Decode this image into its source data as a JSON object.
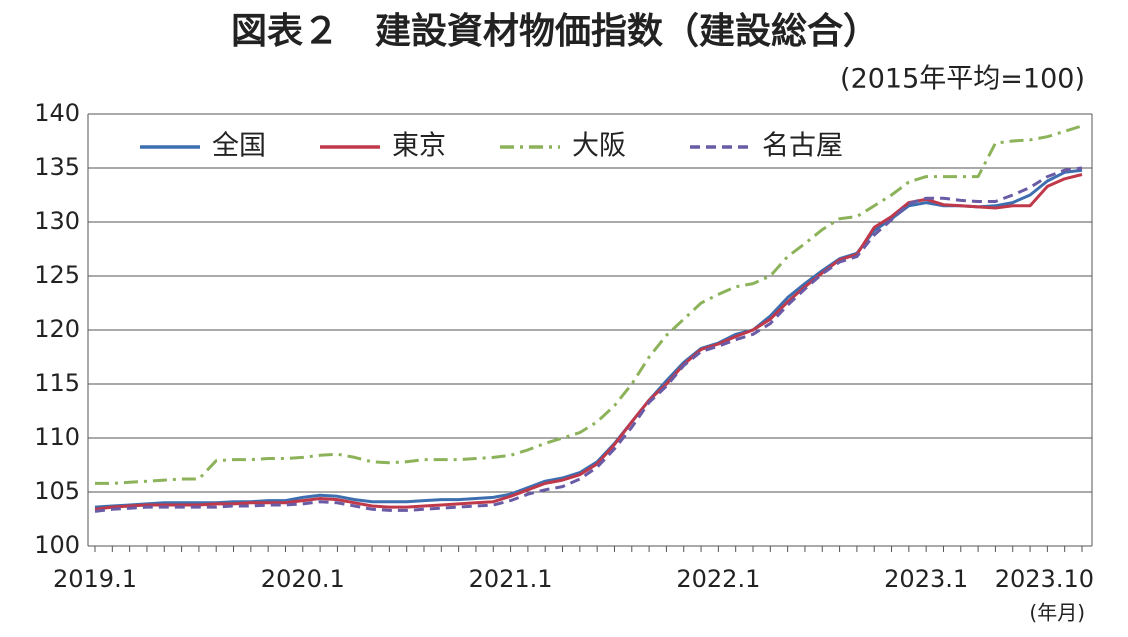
{
  "chart_data": {
    "type": "line",
    "title": "図表２　建設資材物価指数（建設総合）",
    "subtitle": "(2015年平均=100)",
    "x_label": "(年月)",
    "categories": [
      "2019.1",
      null,
      null,
      null,
      null,
      null,
      null,
      null,
      null,
      null,
      null,
      null,
      "2020.1",
      null,
      null,
      null,
      null,
      null,
      null,
      null,
      null,
      null,
      null,
      null,
      "2021.1",
      null,
      null,
      null,
      null,
      null,
      null,
      null,
      null,
      null,
      null,
      null,
      "2022.1",
      null,
      null,
      null,
      null,
      null,
      null,
      null,
      null,
      null,
      null,
      null,
      "2023.1",
      null,
      null,
      null,
      null,
      null,
      null,
      null,
      null,
      "2023.10"
    ],
    "ylim": [
      100,
      140
    ],
    "yticks": [
      100,
      105,
      110,
      115,
      120,
      125,
      130,
      135,
      140
    ],
    "grid": true,
    "legend": "top-left",
    "series": [
      {
        "name": "全国",
        "color": "#3d6fb0",
        "dash": "solid",
        "values": [
          103.6,
          103.7,
          103.8,
          103.9,
          104.0,
          104.0,
          104.0,
          104.0,
          104.1,
          104.1,
          104.2,
          104.2,
          104.5,
          104.7,
          104.6,
          104.3,
          104.1,
          104.1,
          104.1,
          104.2,
          104.3,
          104.3,
          104.4,
          104.5,
          104.8,
          105.4,
          106.0,
          106.3,
          106.8,
          107.8,
          109.5,
          111.5,
          113.5,
          115.3,
          117.0,
          118.3,
          118.8,
          119.6,
          120.0,
          121.3,
          123.0,
          124.3,
          125.5,
          126.6,
          127.1,
          129.2,
          130.3,
          131.5,
          131.8,
          131.5,
          131.5,
          131.4,
          131.5,
          131.8,
          132.5,
          133.8,
          134.6,
          134.8
        ]
      },
      {
        "name": "東京",
        "color": "#c0394a",
        "dash": "solid",
        "values": [
          103.4,
          103.6,
          103.7,
          103.8,
          103.8,
          103.8,
          103.8,
          103.9,
          103.9,
          104.0,
          104.0,
          104.0,
          104.2,
          104.4,
          104.3,
          104.0,
          103.7,
          103.6,
          103.6,
          103.7,
          103.8,
          103.9,
          104.0,
          104.1,
          104.6,
          105.2,
          105.8,
          106.1,
          106.6,
          107.6,
          109.4,
          111.5,
          113.5,
          115.0,
          116.8,
          118.2,
          118.7,
          119.4,
          120.0,
          121.0,
          122.6,
          124.0,
          125.3,
          126.5,
          127.0,
          129.5,
          130.5,
          131.8,
          132.1,
          131.6,
          131.5,
          131.4,
          131.3,
          131.5,
          131.5,
          133.3,
          134.0,
          134.4
        ]
      },
      {
        "name": "大阪",
        "color": "#8db35a",
        "dash": "dashdot",
        "values": [
          105.8,
          105.8,
          105.9,
          106.0,
          106.1,
          106.2,
          106.2,
          107.9,
          108.0,
          108.0,
          108.1,
          108.1,
          108.2,
          108.4,
          108.5,
          108.2,
          107.8,
          107.7,
          107.8,
          108.0,
          108.0,
          108.0,
          108.1,
          108.2,
          108.4,
          108.9,
          109.5,
          110.0,
          110.5,
          111.5,
          113.0,
          115.0,
          117.5,
          119.5,
          121.0,
          122.5,
          123.3,
          124.0,
          124.3,
          125.0,
          126.8,
          128.0,
          129.3,
          130.3,
          130.5,
          131.5,
          132.5,
          133.7,
          134.2,
          134.2,
          134.2,
          134.2,
          137.3,
          137.5,
          137.6,
          137.9,
          138.4,
          138.9
        ]
      },
      {
        "name": "名古屋",
        "color": "#6a5ba6",
        "dash": "dashed",
        "values": [
          103.2,
          103.4,
          103.5,
          103.6,
          103.6,
          103.6,
          103.6,
          103.6,
          103.7,
          103.7,
          103.8,
          103.8,
          103.9,
          104.1,
          104.0,
          103.7,
          103.4,
          103.3,
          103.3,
          103.4,
          103.5,
          103.6,
          103.7,
          103.8,
          104.2,
          104.8,
          105.2,
          105.5,
          106.2,
          107.3,
          109.0,
          111.0,
          113.3,
          114.8,
          116.7,
          118.0,
          118.5,
          119.1,
          119.6,
          120.6,
          122.3,
          123.8,
          125.2,
          126.3,
          126.8,
          128.8,
          130.2,
          131.7,
          132.2,
          132.2,
          132.0,
          131.9,
          131.9,
          132.5,
          133.2,
          134.2,
          134.8,
          135.0
        ]
      }
    ]
  }
}
